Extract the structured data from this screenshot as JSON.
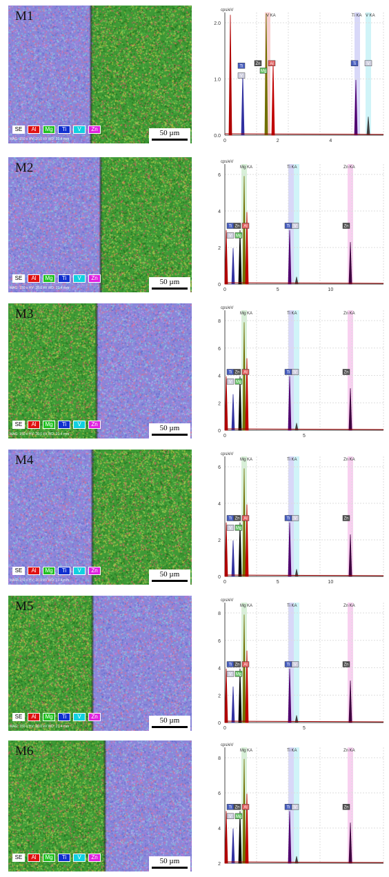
{
  "figure": {
    "scale_bar": "50 µm",
    "legend": [
      "SE",
      "Al",
      "Mg",
      "Ti",
      "V",
      "Zn"
    ],
    "legend_colors": [
      "#ffffff",
      "#e01010",
      "#20c020",
      "#1030d0",
      "#10d0e0",
      "#e020e0"
    ],
    "spectrum_unit": "cps/eV",
    "samples": [
      {
        "label": "M1",
        "map_info": "MAG: 150 x   HV: 20.0 kV   WD: 21.4 mm",
        "left_phase": "Ti-alloy",
        "right_phase": "Mg-alloy",
        "peak_titles": [
          "V KA",
          "Ti KA",
          "V KA"
        ],
        "peak_labels": [
          "V",
          "Ti",
          "Zn",
          "Mg",
          "Al",
          "Ti",
          "V"
        ],
        "y_ticks": [
          "2.0",
          "1.0",
          "0.0"
        ],
        "x_ticks": [
          "0",
          "2",
          "4"
        ]
      },
      {
        "label": "M2",
        "map_info": "MAG: 150 x   HV: 20.0 kV   WD: 21.4 mm",
        "left_phase": "Ti-alloy",
        "right_phase": "Mg-alloy",
        "peak_titles": [
          "Mg KA",
          "Ti KA",
          "Zn KA"
        ],
        "peak_labels": [
          "V",
          "Mg",
          "Ti",
          "Zn",
          "Al",
          "Ti",
          "V",
          "Zn"
        ],
        "y_ticks": [
          "6",
          "4",
          "2",
          "0"
        ],
        "x_ticks": [
          "0",
          "5",
          "10"
        ]
      },
      {
        "label": "M3",
        "map_info": "MAG: 150 x   HV: 20.0 kV   WD: 21.4 mm",
        "left_phase": "Mg-alloy",
        "right_phase": "Ti-alloy",
        "peak_titles": [
          "Mg KA",
          "Ti KA",
          "Zn KA"
        ],
        "peak_labels": [
          "V",
          "Mg",
          "Ti",
          "Zn",
          "Al",
          "Ti",
          "V",
          "Zn"
        ],
        "y_ticks": [
          "8",
          "6",
          "4",
          "2",
          "0"
        ],
        "x_ticks": [
          "0",
          "5"
        ]
      },
      {
        "label": "M4",
        "map_info": "MAG: 150 x   HV: 20.0 kV   WD: 21.4 mm",
        "left_phase": "Ti-alloy",
        "right_phase": "Mg-alloy",
        "peak_titles": [
          "Mg KA",
          "Ti KA",
          "Zn KA"
        ],
        "peak_labels": [
          "V",
          "Mg",
          "Ti",
          "Zn",
          "Al",
          "Ti",
          "V",
          "Zn"
        ],
        "y_ticks": [
          "6",
          "4",
          "2",
          "0"
        ],
        "x_ticks": [
          "0",
          "5",
          "10"
        ]
      },
      {
        "label": "M5",
        "map_info": "MAG: 150 x   HV: 20.0 kV   WD: 21.4 mm",
        "left_phase": "Mg-alloy",
        "right_phase": "Ti-alloy",
        "peak_titles": [
          "Mg KA",
          "Ti KA",
          "Zn KA"
        ],
        "peak_labels": [
          "V",
          "Mg",
          "Ti",
          "Zn",
          "Al",
          "Ti",
          "V",
          "Zn"
        ],
        "y_ticks": [
          "8",
          "6",
          "4",
          "2",
          "0"
        ],
        "x_ticks": [
          "0",
          "5"
        ]
      },
      {
        "label": "M6",
        "map_info": "",
        "left_phase": "Mg-alloy",
        "right_phase": "Ti-alloy",
        "peak_titles": [
          "Mg KA",
          "Ti KA",
          "Zn KA"
        ],
        "peak_labels": [
          "V",
          "Mg",
          "Ti",
          "Zn",
          "Al",
          "Ti",
          "V",
          "Zn"
        ],
        "y_ticks": [
          "8",
          "6",
          "4",
          "2"
        ],
        "x_ticks": []
      }
    ]
  }
}
